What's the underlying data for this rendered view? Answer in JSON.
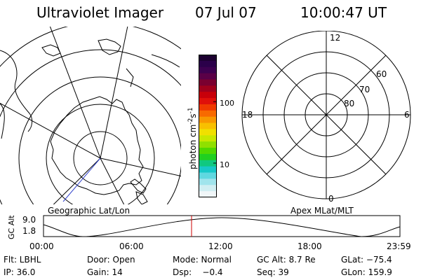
{
  "header": {
    "instrument": "Ultraviolet Imager",
    "date": "07 Jul 07",
    "time": "10:00:47 UT"
  },
  "colorbar": {
    "label": "photon cm",
    "label_exp1": "-2",
    "label_mid": "s",
    "label_exp2": "-1",
    "ticks": [
      "100",
      "10"
    ],
    "colors": [
      "#1c0030",
      "#2b004a",
      "#3d0050",
      "#5a0047",
      "#7a0030",
      "#a0001c",
      "#c8000a",
      "#e0100a",
      "#f03a00",
      "#f86a00",
      "#f89800",
      "#f8c000",
      "#f0e000",
      "#c8e800",
      "#90e000",
      "#50d800",
      "#20d020",
      "#10c880",
      "#18c8c8",
      "#60d8e0",
      "#a0e4ec",
      "#d0eef2",
      "#f0f6f8"
    ]
  },
  "left_map": {
    "caption": "Geographic Lat/Lon",
    "projection": "geographic"
  },
  "right_map": {
    "caption": "Apex MLat/MLT",
    "mlt_labels": {
      "top": "12",
      "left": "18",
      "right": "6",
      "bottom": "0"
    },
    "lat_labels": [
      "60",
      "70",
      "80"
    ]
  },
  "timeline": {
    "ylabel": "GC Alt",
    "yticks": [
      "9.0",
      "1.8"
    ],
    "xticks": [
      "00:00",
      "06:00",
      "12:00",
      "18:00",
      "23:59"
    ],
    "marker_color": "#cc0000"
  },
  "info": {
    "flt": "Flt: LBHL",
    "door": "Door: Open",
    "mode": "Mode: Normal",
    "gc_alt": "GC Alt: 8.7 Re",
    "glat": "GLat: −75.4",
    "ip": "IP: 36.0",
    "gain": "Gain: 14",
    "dsp": "Dsp:    −0.4",
    "seq": "Seq: 39",
    "glon": "GLon: 159.9"
  }
}
